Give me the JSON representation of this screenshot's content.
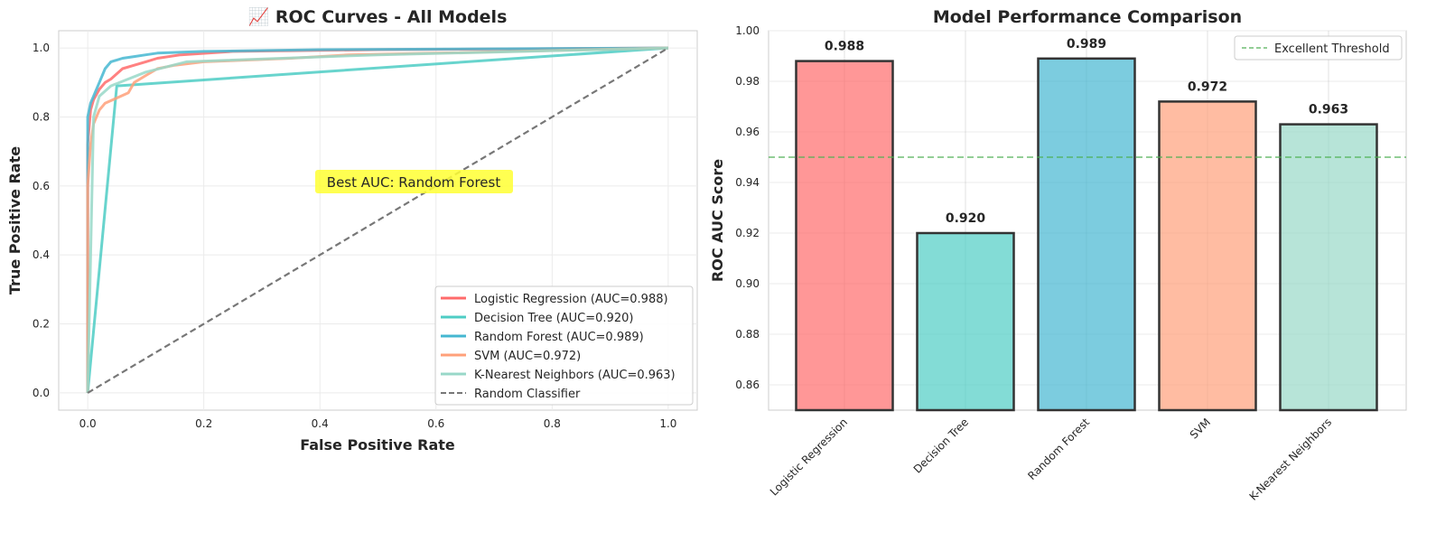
{
  "chart_data": [
    {
      "type": "line",
      "title": "📈 ROC Curves - All Models",
      "xlabel": "False Positive Rate",
      "ylabel": "True Positive Rate",
      "xlim": [
        -0.05,
        1.05
      ],
      "ylim": [
        -0.05,
        1.05
      ],
      "xticks": [
        "0.0",
        "0.2",
        "0.4",
        "0.6",
        "0.8",
        "1.0"
      ],
      "yticks": [
        "0.0",
        "0.2",
        "0.4",
        "0.6",
        "0.8",
        "1.0"
      ],
      "grid": true,
      "legend_position": "lower-right",
      "annotation": {
        "text": "Best AUC: Random Forest",
        "x": 0.56,
        "y": 0.61
      },
      "series": [
        {
          "name": "Logistic Regression (AUC=0.988)",
          "color": "#FF6B6B",
          "points": [
            [
              0,
              0
            ],
            [
              0,
              0.72
            ],
            [
              0.005,
              0.82
            ],
            [
              0.01,
              0.85
            ],
            [
              0.02,
              0.88
            ],
            [
              0.03,
              0.9
            ],
            [
              0.04,
              0.91
            ],
            [
              0.06,
              0.94
            ],
            [
              0.08,
              0.95
            ],
            [
              0.1,
              0.96
            ],
            [
              0.12,
              0.97
            ],
            [
              0.16,
              0.98
            ],
            [
              0.25,
              0.99
            ],
            [
              0.5,
              0.995
            ],
            [
              1,
              1
            ]
          ]
        },
        {
          "name": "Decision Tree (AUC=0.920)",
          "color": "#4ECDC4",
          "points": [
            [
              0,
              0
            ],
            [
              0.05,
              0.89
            ],
            [
              1,
              1
            ]
          ]
        },
        {
          "name": "Random Forest (AUC=0.989)",
          "color": "#45B7D1",
          "points": [
            [
              0,
              0
            ],
            [
              0,
              0.8
            ],
            [
              0.005,
              0.84
            ],
            [
              0.01,
              0.86
            ],
            [
              0.02,
              0.9
            ],
            [
              0.03,
              0.94
            ],
            [
              0.04,
              0.96
            ],
            [
              0.06,
              0.97
            ],
            [
              0.08,
              0.975
            ],
            [
              0.1,
              0.98
            ],
            [
              0.12,
              0.985
            ],
            [
              0.2,
              0.99
            ],
            [
              0.4,
              0.995
            ],
            [
              1,
              1
            ]
          ]
        },
        {
          "name": "SVM (AUC=0.972)",
          "color": "#FFA07A",
          "points": [
            [
              0,
              0
            ],
            [
              0,
              0.6
            ],
            [
              0.005,
              0.72
            ],
            [
              0.01,
              0.78
            ],
            [
              0.02,
              0.82
            ],
            [
              0.03,
              0.84
            ],
            [
              0.05,
              0.855
            ],
            [
              0.07,
              0.87
            ],
            [
              0.08,
              0.9
            ],
            [
              0.1,
              0.92
            ],
            [
              0.12,
              0.94
            ],
            [
              0.15,
              0.95
            ],
            [
              0.2,
              0.96
            ],
            [
              0.35,
              0.97
            ],
            [
              0.45,
              0.98
            ],
            [
              0.6,
              0.985
            ],
            [
              1,
              1
            ]
          ]
        },
        {
          "name": "K-Nearest Neighbors (AUC=0.963)",
          "color": "#98D8C8",
          "points": [
            [
              0,
              0
            ],
            [
              0.01,
              0.8
            ],
            [
              0.02,
              0.86
            ],
            [
              0.04,
              0.89
            ],
            [
              0.1,
              0.93
            ],
            [
              0.17,
              0.96
            ],
            [
              0.5,
              0.98
            ],
            [
              1,
              1
            ]
          ]
        },
        {
          "name": "Random Classifier",
          "color": "#777777",
          "dashed": true,
          "points": [
            [
              0,
              0
            ],
            [
              1,
              1
            ]
          ]
        }
      ]
    },
    {
      "type": "bar",
      "title": "Model Performance Comparison",
      "xlabel": "",
      "ylabel": "ROC AUC Score",
      "ylim": [
        0.85,
        1.0
      ],
      "yticks": [
        "0.86",
        "0.88",
        "0.90",
        "0.92",
        "0.94",
        "0.96",
        "0.98",
        "1.00"
      ],
      "categories": [
        "Logistic Regression",
        "Decision Tree",
        "Random Forest",
        "SVM",
        "K-Nearest Neighbors"
      ],
      "values": [
        0.988,
        0.92,
        0.989,
        0.972,
        0.963
      ],
      "value_labels": [
        "0.988",
        "0.920",
        "0.989",
        "0.972",
        "0.963"
      ],
      "colors": [
        "#FF6B6B",
        "#4ECDC4",
        "#45B7D1",
        "#FFA07A",
        "#98D8C8"
      ],
      "threshold": {
        "label": "Excellent Threshold",
        "value": 0.95,
        "color": "#4CAF50"
      },
      "grid": true,
      "legend_position": "upper-right"
    }
  ]
}
